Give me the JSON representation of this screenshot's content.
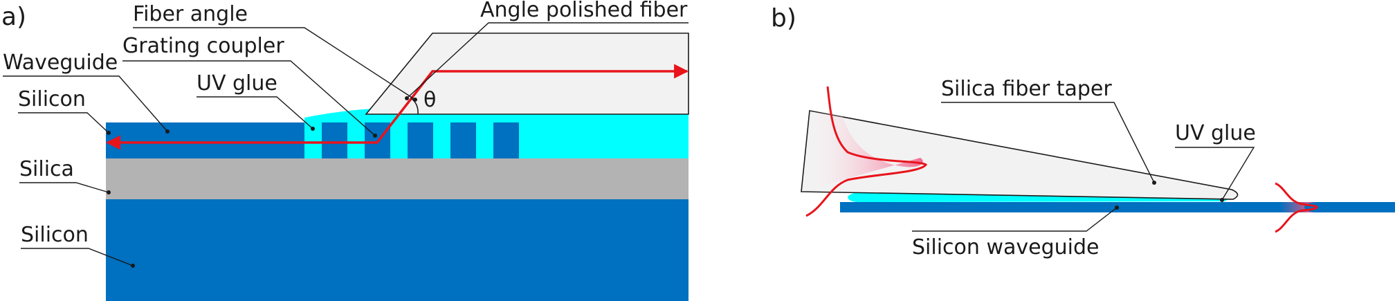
{
  "panel_a": {
    "letter": "a)",
    "labels": {
      "fiber_angle": "Fiber angle",
      "angle_polished_fiber": "Angle polished fiber",
      "grating_coupler": "Grating coupler",
      "waveguide": "Waveguide",
      "uv_glue": "UV glue",
      "silicon_top": "Silicon",
      "silica": "Silica",
      "silicon_bottom": "Silicon",
      "theta": "θ"
    }
  },
  "panel_b": {
    "letter": "b)",
    "labels": {
      "silica_fiber_taper": "Silica fiber taper",
      "uv_glue": "UV glue",
      "silicon_waveguide": "Silicon waveguide"
    }
  },
  "colors": {
    "silicon": "#0070C0",
    "silica": "#B3B3B3",
    "uv_glue": "#00FFFF",
    "fiber": "#F2F2F2",
    "light_path": "#E8141C",
    "mode_fill": "#F25A85"
  }
}
